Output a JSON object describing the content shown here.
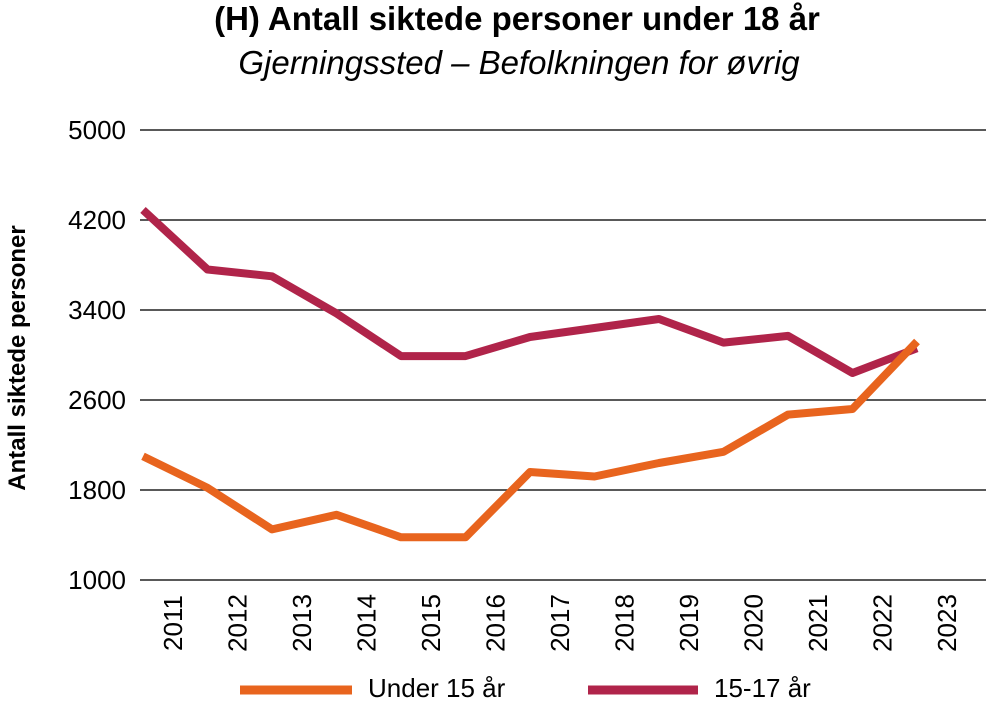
{
  "chart_data": {
    "type": "line",
    "title": "(H) Antall siktede personer under 18 år",
    "subtitle": "Gjerningssted – Befolkningen for øvrig",
    "ylabel": "Antall siktede personer",
    "xlabel": "",
    "categories": [
      "2011",
      "2012",
      "2013",
      "2014",
      "2015",
      "2016",
      "2017",
      "2018",
      "2019",
      "2020",
      "2021",
      "2022",
      "2023"
    ],
    "y_ticks": [
      "5000",
      "4200",
      "3400",
      "2600",
      "1800",
      "1000"
    ],
    "ylim": [
      1000,
      5000
    ],
    "grid": true,
    "legend_position": "bottom",
    "series": [
      {
        "name": "Under 15 år",
        "color": "#e8641e",
        "values": [
          2100,
          1820,
          1450,
          1580,
          1380,
          1380,
          1960,
          1920,
          2040,
          2140,
          2470,
          2520,
          3120
        ]
      },
      {
        "name": "15-17 år",
        "color": "#b0244a",
        "values": [
          4290,
          3760,
          3700,
          3370,
          2990,
          2990,
          3160,
          3240,
          3320,
          3110,
          3170,
          2840,
          3060
        ]
      }
    ]
  }
}
